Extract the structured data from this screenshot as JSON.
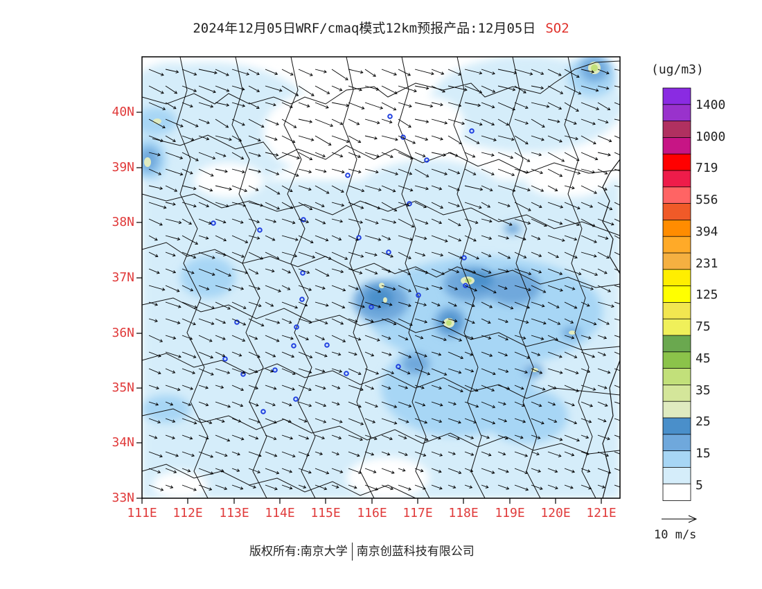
{
  "title": {
    "text": "2024年12月05日WRF/cmaq模式12km预报产品:12月05日",
    "species": "SO2"
  },
  "axes": {
    "lat_labels": [
      "40N",
      "39N",
      "38N",
      "37N",
      "36N",
      "35N",
      "34N",
      "33N"
    ],
    "lon_labels": [
      "111E",
      "112E",
      "113E",
      "114E",
      "115E",
      "116E",
      "117E",
      "118E",
      "119E",
      "120E",
      "121E"
    ],
    "lat_range": [
      33,
      41
    ],
    "lon_range": [
      111,
      121.4
    ]
  },
  "colorbar": {
    "unit": "(ug/m3)",
    "labels": [
      "1400",
      "1000",
      "719",
      "556",
      "394",
      "231",
      "125",
      "75",
      "45",
      "35",
      "25",
      "15",
      "5"
    ],
    "colors_top_to_bottom": [
      "#8a2be2",
      "#9932cc",
      "#b03060",
      "#c71585",
      "#ff0000",
      "#ee1c4a",
      "#ff6464",
      "#f05a28",
      "#ff8c00",
      "#ffaa28",
      "#f5b041",
      "#ffee00",
      "#ffff00",
      "#f2e650",
      "#f0f05a",
      "#6aa84f",
      "#8bc34a",
      "#c2e07a",
      "#d4e69a",
      "#e0ebc0",
      "#4a8fca",
      "#6fa8dc",
      "#a7d6f5",
      "#d5edfa",
      "#ffffff"
    ]
  },
  "wind_reference": {
    "label": "10 m/s"
  },
  "footer": {
    "left": "版权所有:南京大学",
    "right": "南京创蓝科技有限公司"
  }
}
